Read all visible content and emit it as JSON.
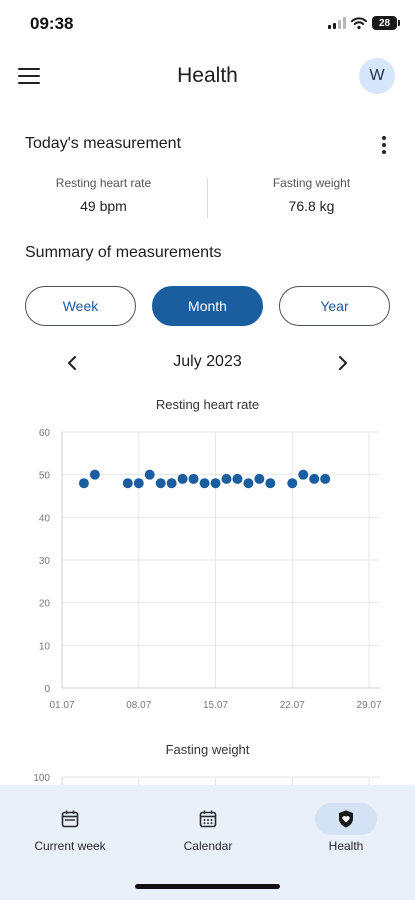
{
  "status_bar": {
    "time": "09:38",
    "battery": "28"
  },
  "header": {
    "title": "Health",
    "avatar_initial": "W"
  },
  "today": {
    "title": "Today's measurement",
    "resting_hr_label": "Resting heart rate",
    "resting_hr_value": "49 bpm",
    "weight_label": "Fasting weight",
    "weight_value": "76.8 kg"
  },
  "summary": {
    "title": "Summary of measurements",
    "segments": [
      "Week",
      "Month",
      "Year"
    ],
    "selected_segment": "Month",
    "period_label": "July 2023"
  },
  "chart_data": [
    {
      "type": "scatter",
      "title": "Resting heart rate",
      "xlabel": "",
      "ylabel": "",
      "x_ticks": [
        "01.07",
        "08.07",
        "15.07",
        "22.07",
        "29.07"
      ],
      "y_ticks": [
        0,
        10,
        20,
        30,
        40,
        50,
        60
      ],
      "xlim": [
        1,
        30
      ],
      "ylim": [
        0,
        60
      ],
      "grid": true,
      "color": "#1b5ea0",
      "x": [
        3,
        4,
        7,
        8,
        9,
        10,
        11,
        12,
        13,
        14,
        15,
        16,
        17,
        18,
        19,
        20,
        22,
        23,
        24,
        25
      ],
      "y": [
        48,
        50,
        48,
        48,
        50,
        48,
        48,
        49,
        49,
        48,
        48,
        49,
        49,
        48,
        49,
        48,
        48,
        50,
        49,
        49
      ]
    },
    {
      "type": "scatter",
      "title": "Fasting weight",
      "xlabel": "",
      "ylabel": "",
      "y_ticks": [
        100
      ],
      "grid": true,
      "color": "#1b5ea0",
      "x": [],
      "y": []
    }
  ],
  "bottom_nav": {
    "items": [
      {
        "label": "Current week",
        "icon": "calendar-week-icon",
        "active": false
      },
      {
        "label": "Calendar",
        "icon": "calendar-icon",
        "active": false
      },
      {
        "label": "Health",
        "icon": "heart-shield-icon",
        "active": true
      }
    ]
  },
  "colors": {
    "accent": "#1b5ea0",
    "nav_background": "#eaf0f9",
    "avatar_background": "#d6e6fb"
  }
}
